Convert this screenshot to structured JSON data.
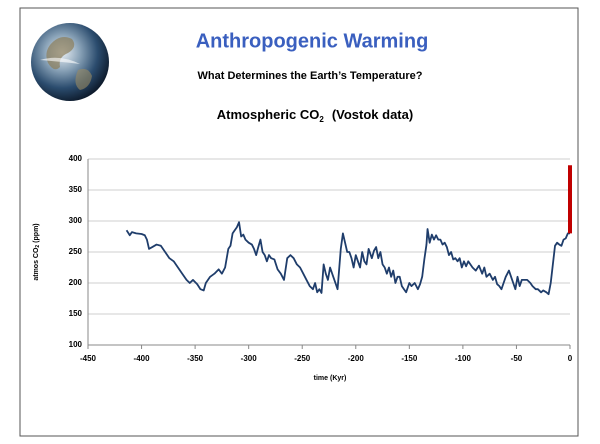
{
  "header": {
    "title": "Anthropogenic Warming",
    "subtitle": "What Determines the Earth’s Temperature?"
  },
  "chart_data": {
    "type": "line",
    "title": "Atmospheric CO",
    "title_subscript": "2",
    "title_suffix": "(Vostok data)",
    "x_label": "time (Kyr)",
    "y_label": "atmos CO",
    "y_label_subscript": "2",
    "y_label_suffix": "(ppm)",
    "xlim": [
      -450,
      0
    ],
    "xticks": [
      -450,
      -400,
      -350,
      -300,
      -250,
      -200,
      -150,
      -100,
      -50,
      0
    ],
    "ylim": [
      100,
      400
    ],
    "yticks": [
      100,
      150,
      200,
      250,
      300,
      350,
      400
    ],
    "grid": true,
    "series": [
      {
        "color": "#1f3d6b",
        "x": [
          -414,
          -411,
          -409,
          -405,
          -400,
          -397,
          -395,
          -393,
          -390,
          -386,
          -382,
          -378,
          -374,
          -370,
          -366,
          -362,
          -358,
          -355,
          -352,
          -348,
          -345,
          -342,
          -340,
          -336,
          -332,
          -328,
          -325,
          -322,
          -319,
          -317,
          -315,
          -313,
          -311,
          -309,
          -307,
          -305,
          -303,
          -300,
          -297,
          -295,
          -293,
          -291,
          -289,
          -287,
          -285,
          -283,
          -281,
          -279,
          -276,
          -273,
          -270,
          -267,
          -264,
          -261,
          -258,
          -255,
          -252,
          -249,
          -246,
          -243,
          -240,
          -238,
          -236,
          -234,
          -232,
          -230,
          -228,
          -226,
          -224,
          -221,
          -219,
          -217,
          -214,
          -212,
          -210,
          -208,
          -206,
          -204,
          -202,
          -200,
          -198,
          -196,
          -194,
          -192,
          -190,
          -188,
          -185,
          -183,
          -181,
          -179,
          -177,
          -175,
          -173,
          -171,
          -169,
          -167,
          -165,
          -163,
          -161,
          -159,
          -157,
          -155,
          -153,
          -150,
          -148,
          -145,
          -142,
          -140,
          -138,
          -136,
          -134,
          -133,
          -131,
          -129,
          -127,
          -125,
          -123,
          -121,
          -119,
          -117,
          -115,
          -113,
          -111,
          -109,
          -107,
          -105,
          -103,
          -101,
          -99,
          -97,
          -95,
          -93,
          -91,
          -88,
          -85,
          -82,
          -80,
          -78,
          -75,
          -72,
          -70,
          -68,
          -66,
          -64,
          -62,
          -60,
          -57,
          -55,
          -53,
          -51,
          -49,
          -47,
          -45,
          -43,
          -40,
          -37,
          -35,
          -32,
          -30,
          -27,
          -25,
          -22,
          -20,
          -18,
          -16,
          -14,
          -12,
          -10,
          -8,
          -6,
          -4,
          -2,
          0
        ],
        "values": [
          285,
          277,
          282,
          280,
          279,
          277,
          270,
          255,
          258,
          262,
          260,
          250,
          240,
          235,
          225,
          215,
          205,
          200,
          205,
          198,
          190,
          188,
          200,
          210,
          215,
          222,
          215,
          225,
          255,
          260,
          280,
          285,
          290,
          298,
          275,
          278,
          270,
          265,
          262,
          255,
          245,
          258,
          270,
          250,
          245,
          235,
          245,
          240,
          238,
          222,
          215,
          205,
          240,
          245,
          240,
          230,
          225,
          215,
          205,
          195,
          190,
          200,
          185,
          190,
          184,
          230,
          215,
          205,
          225,
          210,
          200,
          190,
          255,
          280,
          265,
          250,
          250,
          240,
          225,
          245,
          235,
          225,
          250,
          235,
          230,
          255,
          240,
          252,
          258,
          240,
          250,
          230,
          225,
          215,
          225,
          210,
          220,
          200,
          210,
          210,
          195,
          190,
          185,
          200,
          195,
          200,
          190,
          198,
          210,
          238,
          262,
          287,
          265,
          278,
          270,
          277,
          270,
          270,
          262,
          265,
          258,
          245,
          250,
          238,
          240,
          235,
          240,
          225,
          235,
          227,
          235,
          230,
          225,
          220,
          228,
          215,
          225,
          210,
          215,
          205,
          210,
          198,
          195,
          190,
          200,
          210,
          220,
          210,
          200,
          190,
          210,
          195,
          205,
          205,
          205,
          200,
          195,
          190,
          190,
          185,
          188,
          185,
          182,
          200,
          230,
          260,
          265,
          262,
          260,
          270,
          272,
          280,
          280
        ]
      },
      {
        "color": "#c00000",
        "x": [
          0,
          0
        ],
        "values": [
          280,
          390
        ]
      }
    ]
  }
}
